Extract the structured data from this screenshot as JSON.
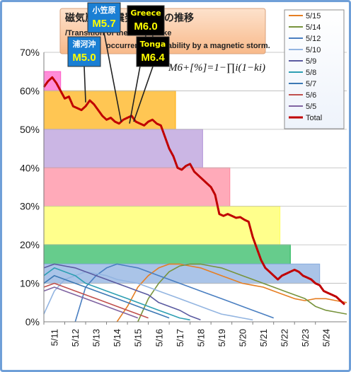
{
  "chart_data": {
    "type": "line",
    "title": "磁気嵐の地震発生確率の推移",
    "subtitle_lines": [
      "/Transition of the earthquake",
      "occurrence probability by a magnetic storm."
    ],
    "formula": "M6+[%]=1−∏i(1−ki)",
    "y_ticks": [
      "0%",
      "10%",
      "20%",
      "30%",
      "40%",
      "50%",
      "60%",
      "70%"
    ],
    "ylim": [
      0,
      70
    ],
    "x_ticks": [
      "5/11",
      "5/12",
      "5/13",
      "5/14",
      "5/15",
      "5/16",
      "5/17",
      "5/18",
      "5/19",
      "5/20",
      "5/21",
      "5/22",
      "5/23",
      "5/24"
    ],
    "xlim": [
      0,
      14.5
    ],
    "grid": true,
    "legend_position": "right",
    "legend": [
      {
        "name": "5/15",
        "color": "#e67e22"
      },
      {
        "name": "5/14",
        "color": "#77933c"
      },
      {
        "name": "5/12",
        "color": "#4a7fc1"
      },
      {
        "name": "5/10",
        "color": "#93b5e1"
      },
      {
        "name": "5/9",
        "color": "#5a5aa0"
      },
      {
        "name": "5/8",
        "color": "#2e9fb3"
      },
      {
        "name": "5/7",
        "color": "#3c78b4"
      },
      {
        "name": "5/6",
        "color": "#c0504d"
      },
      {
        "name": "5/5",
        "color": "#8064a2"
      },
      {
        "name": "Total",
        "color": "#c00000"
      }
    ],
    "bands": [
      {
        "from_x": 0.0,
        "to_x": 0.8,
        "from_y": 60,
        "to_y": 65,
        "color": "#ff66cc"
      },
      {
        "from_x": 0.0,
        "to_x": 6.3,
        "from_y": 50,
        "to_y": 60,
        "color": "#ffb31a"
      },
      {
        "from_x": 0.0,
        "to_x": 7.6,
        "from_y": 40,
        "to_y": 50,
        "color": "#b99ddb"
      },
      {
        "from_x": 0.0,
        "to_x": 8.9,
        "from_y": 30,
        "to_y": 40,
        "color": "#ff8da1"
      },
      {
        "from_x": 0.0,
        "to_x": 11.3,
        "from_y": 20,
        "to_y": 30,
        "color": "#ffff66"
      },
      {
        "from_x": 0.0,
        "to_x": 11.8,
        "from_y": 15,
        "to_y": 20,
        "color": "#33bb66"
      },
      {
        "from_x": 0.0,
        "to_x": 13.2,
        "from_y": 10,
        "to_y": 15,
        "color": "#8eb0e0"
      }
    ],
    "series": [
      {
        "name": "Total",
        "color": "#c00000",
        "x": [
          0,
          0.2,
          0.4,
          0.6,
          0.8,
          1.0,
          1.2,
          1.4,
          1.6,
          1.8,
          2.0,
          2.2,
          2.4,
          2.6,
          2.8,
          3.0,
          3.2,
          3.4,
          3.6,
          3.8,
          4.0,
          4.2,
          4.4,
          4.6,
          4.8,
          5.0,
          5.2,
          5.4,
          5.6,
          5.8,
          6.0,
          6.2,
          6.4,
          6.6,
          6.8,
          7.0,
          7.2,
          7.4,
          7.6,
          7.8,
          8.0,
          8.2,
          8.4,
          8.6,
          8.8,
          9.0,
          9.2,
          9.4,
          9.6,
          9.8,
          10.0,
          10.2,
          10.4,
          10.6,
          10.8,
          11.0,
          11.2,
          11.4,
          11.6,
          11.8,
          12.0,
          12.2,
          12.4,
          12.6,
          12.8,
          13.0,
          13.2,
          13.4,
          13.6,
          13.8,
          14.0,
          14.2,
          14.4
        ],
        "values": [
          61,
          62.5,
          63.5,
          62,
          60,
          58,
          58.5,
          56,
          55.5,
          55,
          56,
          57.5,
          56.5,
          55,
          53.5,
          52.5,
          53,
          52,
          51.5,
          52.5,
          53,
          53.5,
          52,
          51.5,
          51,
          52,
          52.5,
          51.5,
          51,
          48,
          45,
          43,
          40,
          39.5,
          40.5,
          41,
          39,
          38,
          37,
          36,
          35,
          33,
          28,
          27.5,
          28,
          27.5,
          27,
          27.2,
          26.5,
          26,
          22,
          19,
          16,
          14,
          13,
          12,
          11,
          12,
          12.5,
          13,
          13.5,
          13,
          12,
          11.5,
          11,
          10,
          9.5,
          8,
          7.5,
          7,
          6.5,
          5.5,
          4.5
        ]
      },
      {
        "name": "5/15",
        "color": "#e67e22",
        "x": [
          3.5,
          4.0,
          4.5,
          5.0,
          5.5,
          6.0,
          6.5,
          7.0,
          7.5,
          8.0,
          8.5,
          9.0,
          9.5,
          10.0,
          10.5,
          11.0,
          11.5,
          12.0,
          12.5,
          13.0,
          13.5,
          14.0,
          14.5
        ],
        "values": [
          0,
          4,
          9,
          12,
          14,
          15,
          15,
          14.5,
          14,
          13,
          12,
          11,
          10,
          9.5,
          9,
          8,
          7,
          6,
          5.5,
          6,
          6,
          5.5,
          5
        ]
      },
      {
        "name": "5/14",
        "color": "#77933c",
        "x": [
          4.5,
          5.0,
          5.5,
          6.0,
          6.5,
          7.0,
          7.5,
          8.0,
          8.5,
          9.0,
          9.5,
          10.0,
          10.5,
          11.0,
          11.5,
          12.0,
          12.5,
          13.0,
          13.5,
          14.0,
          14.5
        ],
        "values": [
          0,
          6,
          10,
          13,
          14.5,
          15,
          15,
          14.5,
          14,
          13,
          12,
          11,
          10,
          9,
          8,
          7,
          6,
          4,
          3,
          2.5,
          2
        ]
      },
      {
        "name": "5/12",
        "color": "#4a7fc1",
        "x": [
          1.5,
          2.0,
          2.5,
          3.0,
          3.5,
          4.0,
          4.5,
          5.0,
          5.5,
          6.0,
          6.5,
          7.0,
          7.5,
          8.0,
          8.5,
          9.0,
          9.5,
          10.0,
          10.5,
          11.0
        ],
        "values": [
          0,
          9,
          12,
          14,
          15,
          14.5,
          14,
          13,
          12,
          11,
          10,
          9,
          8,
          7,
          6,
          5,
          4,
          3,
          2,
          1
        ]
      },
      {
        "name": "5/10",
        "color": "#93b5e1",
        "x": [
          0,
          0.5,
          1.0,
          1.5,
          2.0,
          2.5,
          3.0,
          3.5,
          4.0,
          4.5,
          5.0,
          5.5,
          6.0,
          6.5,
          7.0,
          7.5,
          8.0,
          8.5,
          9.0,
          9.5,
          10.0
        ],
        "values": [
          2,
          8,
          11,
          12,
          13,
          12.5,
          12,
          11,
          10.5,
          10,
          9,
          8,
          7,
          6,
          5,
          4,
          3,
          2,
          1.5,
          1,
          0.5
        ]
      },
      {
        "name": "5/9",
        "color": "#5a5aa0",
        "x": [
          0,
          0.5,
          1.0,
          1.5,
          2.0,
          2.5,
          3.0,
          3.5,
          4.0,
          4.5,
          5.0,
          5.5,
          6.0,
          6.5,
          7.0,
          7.5
        ],
        "values": [
          14,
          15,
          14.5,
          14,
          13,
          12,
          11,
          10,
          9,
          8,
          7,
          5,
          4,
          3,
          1.5,
          0.5
        ]
      },
      {
        "name": "5/8",
        "color": "#2e9fb3",
        "x": [
          0,
          0.5,
          1.0,
          1.5,
          2.0,
          2.5,
          3.0,
          3.5,
          4.0,
          4.5,
          5.0,
          5.5,
          6.0,
          6.5,
          7.0
        ],
        "values": [
          12,
          14,
          13,
          12,
          10,
          9,
          8,
          7,
          6,
          5,
          4,
          3,
          2,
          1,
          0.5
        ]
      },
      {
        "name": "5/7",
        "color": "#3c78b4",
        "x": [
          0,
          0.5,
          1.0,
          1.5,
          2.0,
          2.5,
          3.0,
          3.5,
          4.0,
          4.5,
          5.0,
          5.5,
          6.0
        ],
        "values": [
          10,
          12,
          11,
          10,
          9,
          8,
          7,
          6,
          5,
          4,
          3,
          2,
          1
        ]
      },
      {
        "name": "5/6",
        "color": "#c0504d",
        "x": [
          0,
          0.5,
          1.0,
          1.5,
          2.0,
          2.5,
          3.0,
          3.5,
          4.0,
          4.5,
          5.0
        ],
        "values": [
          9,
          10,
          9,
          8,
          7,
          6,
          5,
          4,
          3,
          2,
          1
        ]
      },
      {
        "name": "5/5",
        "color": "#8064a2",
        "x": [
          0,
          0.5,
          1.0,
          1.5,
          2.0,
          2.5,
          3.0,
          3.5,
          4.0,
          4.5
        ],
        "values": [
          8,
          9,
          8,
          7,
          6,
          5,
          4,
          3,
          2,
          1
        ]
      }
    ],
    "annotations": [
      {
        "place": "浦河沖",
        "mag": "M5.0",
        "x": 2.0,
        "y": 57,
        "bg": "#1a7fd4",
        "place_color": "#ffffff",
        "mag_color": "#ffff00"
      },
      {
        "place": "小笠原",
        "mag": "M5.7",
        "x": 3.7,
        "y": 52,
        "bg": "#1a7fd4",
        "place_color": "#ffffff",
        "mag_color": "#ffff00"
      },
      {
        "place": "Greece",
        "mag": "M6.0",
        "x": 4.1,
        "y": 51.5,
        "bg": "#000000",
        "place_color": "#ffff00",
        "mag_color": "#ffff00"
      },
      {
        "place": "Tonga",
        "mag": "M6.4",
        "x": 4.3,
        "y": 52,
        "bg": "#000000",
        "place_color": "#ffff00",
        "mag_color": "#ffff00"
      }
    ]
  }
}
